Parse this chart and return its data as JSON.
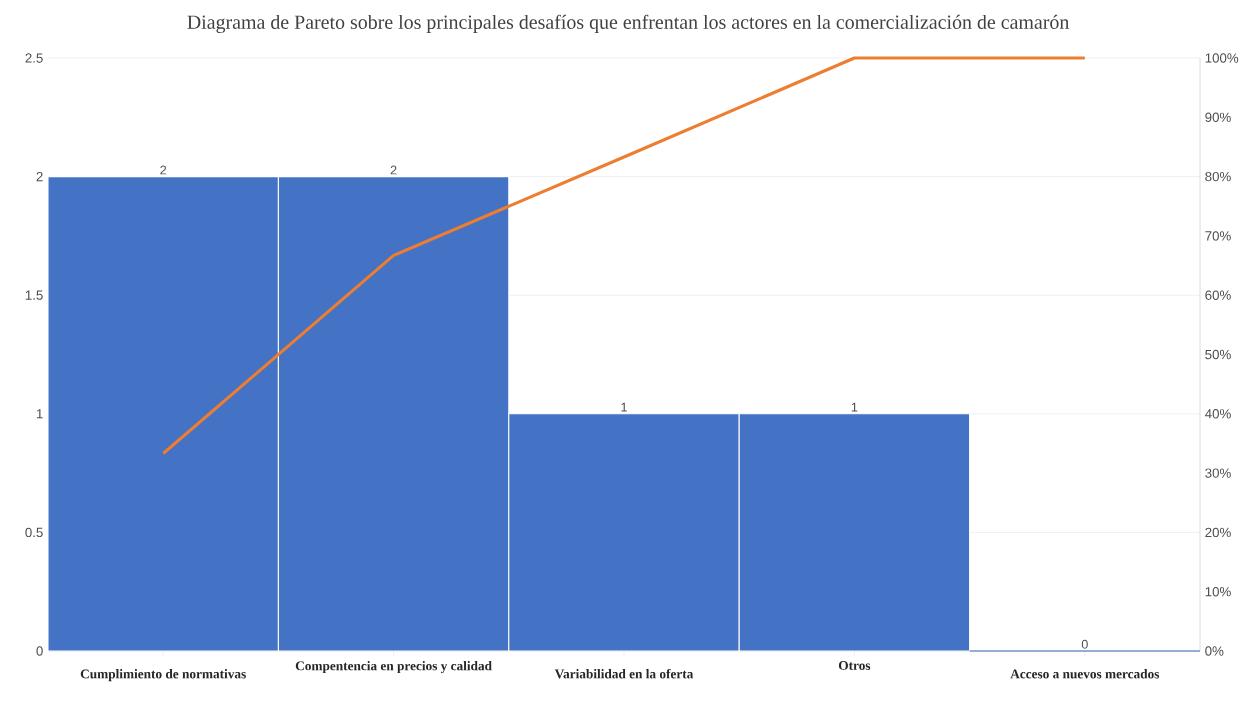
{
  "chart_data": {
    "type": "bar",
    "title": "Diagrama de Pareto sobre los principales desafíos que enfrentan los actores en la comercialización de camarón",
    "categories": [
      "Cumplimiento de normativas",
      "Compentencia en precios y calidad",
      "Variabilidad en la oferta",
      "Otros",
      "Acceso a nuevos mercados"
    ],
    "series": [
      {
        "color": "#4472c4",
        "values": [
          2,
          2,
          1,
          1,
          0
        ],
        "value_labels": [
          "2",
          "2",
          "1",
          "1",
          "0"
        ]
      },
      {
        "type": "line",
        "axis": "y2",
        "color": "#ed7d31",
        "values": [
          33.3,
          66.7,
          83.3,
          100,
          100
        ]
      }
    ],
    "ylim": [
      0,
      2.5
    ],
    "yticks": [
      0,
      0.5,
      1,
      1.5,
      2,
      2.5
    ],
    "y2lim": [
      0,
      100
    ],
    "y2ticks": [
      {
        "value": 0,
        "label": "0%"
      },
      {
        "value": 10,
        "label": "10%"
      },
      {
        "value": 20,
        "label": "20%"
      },
      {
        "value": 30,
        "label": "30%"
      },
      {
        "value": 40,
        "label": "40%"
      },
      {
        "value": 50,
        "label": "50%"
      },
      {
        "value": 60,
        "label": "60%"
      },
      {
        "value": 70,
        "label": "70%"
      },
      {
        "value": 80,
        "label": "80%"
      },
      {
        "value": 90,
        "label": "90%"
      },
      {
        "value": 100,
        "label": "100%"
      }
    ],
    "grid": "y"
  }
}
